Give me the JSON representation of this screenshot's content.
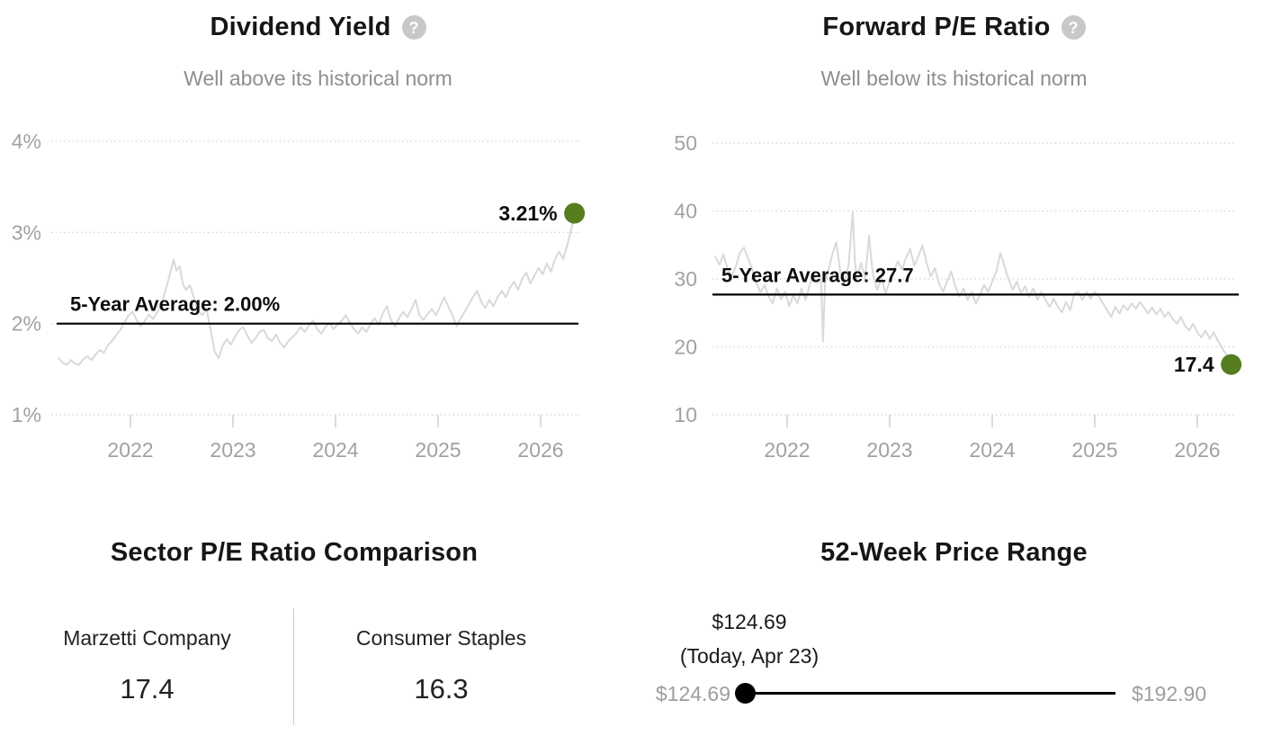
{
  "colors": {
    "accent_green": "#567d1f",
    "series_gray": "#d9d9d9",
    "grid_gray": "#d2d2d2",
    "axis_label_gray": "#a2a2a2",
    "tick_gray": "#cfcfcf",
    "label_black": "#0d0d0d",
    "slider_black": "#000000"
  },
  "dividend_yield_card": {
    "title": "Dividend Yield",
    "help_glyph": "?",
    "subtitle": "Well above its historical norm"
  },
  "forward_pe_card": {
    "title": "Forward P/E Ratio",
    "help_glyph": "?",
    "subtitle": "Well below its historical norm"
  },
  "sector_comparison": {
    "title": "Sector P/E Ratio Comparison",
    "columns": [
      {
        "label": "Marzetti Company",
        "value": "17.4"
      },
      {
        "label": "Consumer Staples",
        "value": "16.3"
      }
    ]
  },
  "price_range": {
    "title": "52-Week Price Range",
    "current_price": "$124.69",
    "current_note": "(Today, Apr 23)",
    "low": "$124.69",
    "high": "$192.90"
  },
  "chart_data": [
    {
      "type": "line",
      "title": "Dividend Yield",
      "subtitle": "Well above its historical norm",
      "xlabel": "",
      "ylabel": "",
      "x_ticks": [
        2022,
        2023,
        2024,
        2025,
        2026
      ],
      "y_ticks": [
        1,
        2,
        3,
        4
      ],
      "y_tick_labels": [
        "1%",
        "2%",
        "3%",
        "4%"
      ],
      "xlim": [
        2021.28,
        2026.45
      ],
      "ylim": [
        1,
        4
      ],
      "grid": "dotted-horizontal",
      "legend": "none",
      "average": 2.0,
      "average_label": "5-Year Average: 2.00%",
      "last_value": 3.21,
      "last_label": "3.21%",
      "points": [
        [
          2021.3,
          1.62
        ],
        [
          2021.34,
          1.57
        ],
        [
          2021.38,
          1.55
        ],
        [
          2021.42,
          1.6
        ],
        [
          2021.46,
          1.56
        ],
        [
          2021.5,
          1.55
        ],
        [
          2021.54,
          1.61
        ],
        [
          2021.58,
          1.64
        ],
        [
          2021.62,
          1.6
        ],
        [
          2021.66,
          1.66
        ],
        [
          2021.7,
          1.71
        ],
        [
          2021.74,
          1.68
        ],
        [
          2021.78,
          1.76
        ],
        [
          2021.82,
          1.81
        ],
        [
          2021.86,
          1.87
        ],
        [
          2021.9,
          1.93
        ],
        [
          2021.94,
          2.01
        ],
        [
          2021.98,
          2.09
        ],
        [
          2022.02,
          2.13
        ],
        [
          2022.06,
          2.04
        ],
        [
          2022.1,
          1.97
        ],
        [
          2022.14,
          2.03
        ],
        [
          2022.18,
          2.1
        ],
        [
          2022.22,
          2.05
        ],
        [
          2022.26,
          2.12
        ],
        [
          2022.3,
          2.21
        ],
        [
          2022.34,
          2.36
        ],
        [
          2022.38,
          2.52
        ],
        [
          2022.42,
          2.7
        ],
        [
          2022.45,
          2.58
        ],
        [
          2022.48,
          2.63
        ],
        [
          2022.51,
          2.44
        ],
        [
          2022.54,
          2.37
        ],
        [
          2022.58,
          2.42
        ],
        [
          2022.62,
          2.28
        ],
        [
          2022.66,
          2.14
        ],
        [
          2022.7,
          2.09
        ],
        [
          2022.74,
          2.17
        ],
        [
          2022.78,
          1.94
        ],
        [
          2022.82,
          1.7
        ],
        [
          2022.86,
          1.62
        ],
        [
          2022.9,
          1.76
        ],
        [
          2022.94,
          1.83
        ],
        [
          2022.98,
          1.77
        ],
        [
          2023.02,
          1.86
        ],
        [
          2023.06,
          1.93
        ],
        [
          2023.1,
          1.96
        ],
        [
          2023.14,
          1.87
        ],
        [
          2023.18,
          1.79
        ],
        [
          2023.22,
          1.84
        ],
        [
          2023.26,
          1.91
        ],
        [
          2023.3,
          1.93
        ],
        [
          2023.34,
          1.84
        ],
        [
          2023.38,
          1.81
        ],
        [
          2023.42,
          1.88
        ],
        [
          2023.46,
          1.79
        ],
        [
          2023.5,
          1.74
        ],
        [
          2023.54,
          1.81
        ],
        [
          2023.58,
          1.85
        ],
        [
          2023.62,
          1.9
        ],
        [
          2023.66,
          1.96
        ],
        [
          2023.7,
          1.91
        ],
        [
          2023.74,
          1.98
        ],
        [
          2023.78,
          2.03
        ],
        [
          2023.82,
          1.94
        ],
        [
          2023.86,
          1.89
        ],
        [
          2023.9,
          1.96
        ],
        [
          2023.94,
          2.01
        ],
        [
          2023.98,
          1.94
        ],
        [
          2024.02,
          1.99
        ],
        [
          2024.06,
          2.03
        ],
        [
          2024.1,
          2.09
        ],
        [
          2024.14,
          2.01
        ],
        [
          2024.18,
          1.94
        ],
        [
          2024.22,
          1.89
        ],
        [
          2024.26,
          1.96
        ],
        [
          2024.3,
          1.91
        ],
        [
          2024.34,
          1.99
        ],
        [
          2024.38,
          2.06
        ],
        [
          2024.42,
          1.99
        ],
        [
          2024.46,
          2.11
        ],
        [
          2024.5,
          2.19
        ],
        [
          2024.54,
          2.04
        ],
        [
          2024.58,
          1.97
        ],
        [
          2024.62,
          2.06
        ],
        [
          2024.66,
          2.13
        ],
        [
          2024.7,
          2.07
        ],
        [
          2024.74,
          2.16
        ],
        [
          2024.78,
          2.26
        ],
        [
          2024.82,
          2.09
        ],
        [
          2024.86,
          2.04
        ],
        [
          2024.9,
          2.11
        ],
        [
          2024.94,
          2.16
        ],
        [
          2024.98,
          2.09
        ],
        [
          2025.02,
          2.19
        ],
        [
          2025.06,
          2.29
        ],
        [
          2025.1,
          2.19
        ],
        [
          2025.14,
          2.09
        ],
        [
          2025.18,
          1.97
        ],
        [
          2025.22,
          2.06
        ],
        [
          2025.26,
          2.13
        ],
        [
          2025.3,
          2.21
        ],
        [
          2025.34,
          2.29
        ],
        [
          2025.38,
          2.36
        ],
        [
          2025.42,
          2.24
        ],
        [
          2025.46,
          2.17
        ],
        [
          2025.5,
          2.26
        ],
        [
          2025.54,
          2.19
        ],
        [
          2025.58,
          2.29
        ],
        [
          2025.62,
          2.36
        ],
        [
          2025.66,
          2.29
        ],
        [
          2025.7,
          2.39
        ],
        [
          2025.74,
          2.46
        ],
        [
          2025.78,
          2.37
        ],
        [
          2025.82,
          2.49
        ],
        [
          2025.86,
          2.56
        ],
        [
          2025.9,
          2.44
        ],
        [
          2025.94,
          2.53
        ],
        [
          2025.98,
          2.61
        ],
        [
          2026.02,
          2.54
        ],
        [
          2026.06,
          2.66
        ],
        [
          2026.1,
          2.57
        ],
        [
          2026.14,
          2.71
        ],
        [
          2026.18,
          2.79
        ],
        [
          2026.22,
          2.71
        ],
        [
          2026.26,
          2.86
        ],
        [
          2026.3,
          3.04
        ],
        [
          2026.33,
          3.21
        ]
      ]
    },
    {
      "type": "line",
      "title": "Forward P/E Ratio",
      "subtitle": "Well below its historical norm",
      "xlabel": "",
      "ylabel": "",
      "x_ticks": [
        2022,
        2023,
        2024,
        2025,
        2026
      ],
      "y_ticks": [
        10,
        20,
        30,
        40,
        50
      ],
      "y_tick_labels": [
        "10",
        "20",
        "30",
        "40",
        "50"
      ],
      "xlim": [
        2021.28,
        2026.45
      ],
      "ylim": [
        10,
        50
      ],
      "grid": "dotted-horizontal",
      "legend": "none",
      "average": 27.7,
      "average_label": "5-Year Average: 27.7",
      "last_value": 17.4,
      "last_label": "17.4",
      "points": [
        [
          2021.3,
          33.2
        ],
        [
          2021.34,
          32.1
        ],
        [
          2021.38,
          33.6
        ],
        [
          2021.42,
          31.4
        ],
        [
          2021.46,
          30.4
        ],
        [
          2021.5,
          31.9
        ],
        [
          2021.54,
          33.9
        ],
        [
          2021.58,
          34.6
        ],
        [
          2021.62,
          33.0
        ],
        [
          2021.66,
          31.4
        ],
        [
          2021.7,
          29.4
        ],
        [
          2021.74,
          28.0
        ],
        [
          2021.78,
          29.1
        ],
        [
          2021.82,
          27.4
        ],
        [
          2021.86,
          26.4
        ],
        [
          2021.9,
          28.6
        ],
        [
          2021.94,
          27.0
        ],
        [
          2021.98,
          28.1
        ],
        [
          2022.02,
          26.0
        ],
        [
          2022.06,
          27.6
        ],
        [
          2022.1,
          26.4
        ],
        [
          2022.14,
          28.6
        ],
        [
          2022.18,
          26.9
        ],
        [
          2022.22,
          29.1
        ],
        [
          2022.26,
          30.6
        ],
        [
          2022.3,
          29.4
        ],
        [
          2022.33,
          30.1
        ],
        [
          2022.35,
          20.8
        ],
        [
          2022.37,
          29.6
        ],
        [
          2022.4,
          31.1
        ],
        [
          2022.44,
          33.6
        ],
        [
          2022.48,
          35.4
        ],
        [
          2022.52,
          30.9
        ],
        [
          2022.56,
          29.4
        ],
        [
          2022.6,
          32.1
        ],
        [
          2022.64,
          39.8
        ],
        [
          2022.66,
          32.9
        ],
        [
          2022.68,
          29.9
        ],
        [
          2022.72,
          32.4
        ],
        [
          2022.76,
          30.1
        ],
        [
          2022.8,
          36.4
        ],
        [
          2022.82,
          32.9
        ],
        [
          2022.84,
          30.4
        ],
        [
          2022.88,
          28.4
        ],
        [
          2022.92,
          30.1
        ],
        [
          2022.96,
          27.9
        ],
        [
          2023.0,
          29.6
        ],
        [
          2023.04,
          31.1
        ],
        [
          2023.08,
          32.6
        ],
        [
          2023.12,
          31.4
        ],
        [
          2023.16,
          33.1
        ],
        [
          2023.2,
          34.4
        ],
        [
          2023.24,
          31.9
        ],
        [
          2023.28,
          33.4
        ],
        [
          2023.32,
          34.9
        ],
        [
          2023.36,
          32.4
        ],
        [
          2023.4,
          30.4
        ],
        [
          2023.44,
          31.6
        ],
        [
          2023.48,
          29.4
        ],
        [
          2023.52,
          28.1
        ],
        [
          2023.56,
          29.6
        ],
        [
          2023.6,
          31.1
        ],
        [
          2023.64,
          28.9
        ],
        [
          2023.68,
          27.4
        ],
        [
          2023.72,
          28.6
        ],
        [
          2023.76,
          26.9
        ],
        [
          2023.8,
          28.1
        ],
        [
          2023.84,
          26.4
        ],
        [
          2023.88,
          27.6
        ],
        [
          2023.92,
          29.1
        ],
        [
          2023.96,
          28.1
        ],
        [
          2024.0,
          29.6
        ],
        [
          2024.04,
          31.1
        ],
        [
          2024.08,
          33.8
        ],
        [
          2024.12,
          31.9
        ],
        [
          2024.16,
          29.9
        ],
        [
          2024.2,
          28.4
        ],
        [
          2024.24,
          29.6
        ],
        [
          2024.28,
          27.9
        ],
        [
          2024.32,
          28.9
        ],
        [
          2024.36,
          27.4
        ],
        [
          2024.4,
          28.6
        ],
        [
          2024.44,
          26.9
        ],
        [
          2024.48,
          28.1
        ],
        [
          2024.52,
          26.9
        ],
        [
          2024.56,
          25.9
        ],
        [
          2024.6,
          27.1
        ],
        [
          2024.64,
          25.9
        ],
        [
          2024.68,
          25.1
        ],
        [
          2024.72,
          26.6
        ],
        [
          2024.76,
          25.4
        ],
        [
          2024.8,
          27.9
        ],
        [
          2024.84,
          28.1
        ],
        [
          2024.88,
          26.9
        ],
        [
          2024.92,
          28.1
        ],
        [
          2024.96,
          27.1
        ],
        [
          2025.0,
          28.1
        ],
        [
          2025.04,
          27.4
        ],
        [
          2025.08,
          26.4
        ],
        [
          2025.12,
          25.4
        ],
        [
          2025.16,
          24.4
        ],
        [
          2025.2,
          25.9
        ],
        [
          2025.24,
          24.9
        ],
        [
          2025.28,
          26.1
        ],
        [
          2025.32,
          25.4
        ],
        [
          2025.36,
          26.4
        ],
        [
          2025.4,
          25.6
        ],
        [
          2025.44,
          26.6
        ],
        [
          2025.48,
          25.8
        ],
        [
          2025.52,
          24.9
        ],
        [
          2025.56,
          25.8
        ],
        [
          2025.6,
          24.8
        ],
        [
          2025.64,
          25.6
        ],
        [
          2025.68,
          24.4
        ],
        [
          2025.72,
          25.1
        ],
        [
          2025.76,
          24.1
        ],
        [
          2025.8,
          23.4
        ],
        [
          2025.84,
          24.4
        ],
        [
          2025.88,
          23.1
        ],
        [
          2025.92,
          22.4
        ],
        [
          2025.96,
          23.4
        ],
        [
          2026.0,
          22.1
        ],
        [
          2026.04,
          21.4
        ],
        [
          2026.08,
          22.4
        ],
        [
          2026.12,
          21.2
        ],
        [
          2026.16,
          22.1
        ],
        [
          2026.2,
          20.9
        ],
        [
          2026.24,
          19.9
        ],
        [
          2026.28,
          18.9
        ],
        [
          2026.31,
          17.9
        ],
        [
          2026.33,
          17.4
        ]
      ]
    }
  ]
}
